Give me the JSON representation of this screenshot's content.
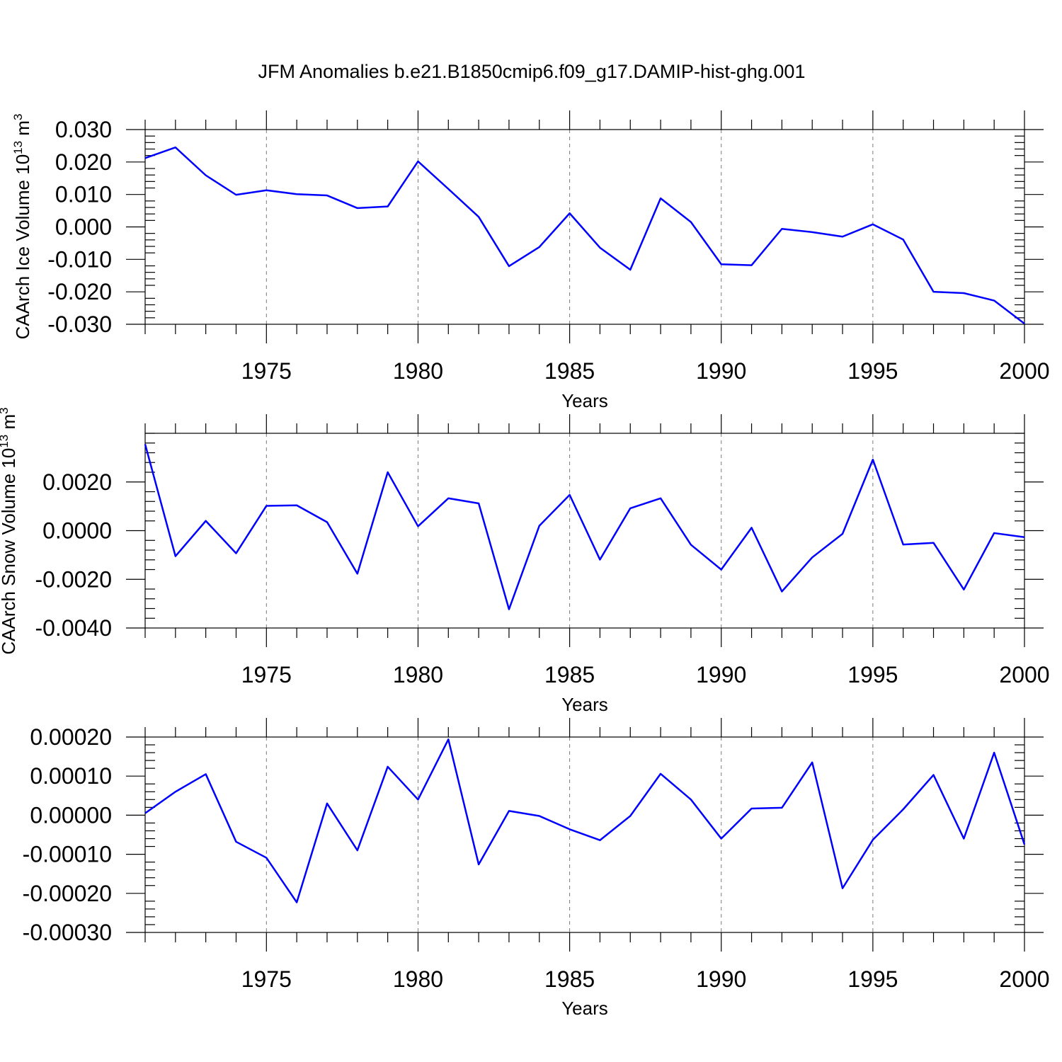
{
  "figure": {
    "title": "JFM Anomalies b.e21.B1850cmip6.f09_g17.DAMIP-hist-ghg.001"
  },
  "colors": {
    "series": "#0000ff",
    "grid": "#7a7a7a",
    "axis": "#000000"
  },
  "chart_data": [
    {
      "type": "line",
      "title": "",
      "xlabel": "Years",
      "ylabel": "CAArch Ice Volume 10",
      "ylabel_exponent": "13",
      "ylabel_unit": " m",
      "ylabel_unit_exponent": "3",
      "xlim": [
        1971,
        2000
      ],
      "ylim": [
        -0.03,
        0.03
      ],
      "x_ticks": [
        1975,
        1980,
        1985,
        1990,
        1995,
        2000
      ],
      "y_ticks": [
        -0.03,
        -0.02,
        -0.01,
        0.0,
        0.01,
        0.02,
        0.03
      ],
      "y_tick_labels": [
        "-0.030",
        "-0.020",
        "-0.010",
        "0.000",
        "0.010",
        "0.020",
        "0.030"
      ],
      "grid": "vertical dashed lines at major x ticks",
      "series": [
        {
          "x": [
            1971,
            1972,
            1973,
            1974,
            1975,
            1976,
            1977,
            1978,
            1979,
            1980,
            1981,
            1982,
            1983,
            1984,
            1985,
            1986,
            1987,
            1988,
            1989,
            1990,
            1991,
            1992,
            1993,
            1994,
            1995,
            1996,
            1997,
            1998,
            1999,
            2000
          ],
          "values": [
            0.0212,
            0.0245,
            0.0159,
            0.0099,
            0.0113,
            0.0101,
            0.0097,
            0.0058,
            0.0063,
            0.0202,
            0.0117,
            0.0031,
            -0.0121,
            -0.0062,
            0.0042,
            -0.0064,
            -0.0132,
            0.0088,
            0.0015,
            -0.0115,
            -0.0118,
            -0.0006,
            -0.0016,
            -0.003,
            0.0008,
            -0.0039,
            -0.02,
            -0.0204,
            -0.0227,
            -0.0298
          ]
        }
      ]
    },
    {
      "type": "line",
      "title": "",
      "xlabel": "Years",
      "ylabel": "CAArch Snow Volume 10",
      "ylabel_exponent": "13",
      "ylabel_unit": " m",
      "ylabel_unit_exponent": "3",
      "xlim": [
        1971,
        2000
      ],
      "ylim": [
        -0.004,
        0.004
      ],
      "x_ticks": [
        1975,
        1980,
        1985,
        1990,
        1995,
        2000
      ],
      "y_ticks": [
        -0.004,
        -0.002,
        0.0,
        0.002
      ],
      "y_tick_labels": [
        "-0.0040",
        "-0.0020",
        "0.0000",
        "0.0020"
      ],
      "grid": "vertical dashed lines at major x ticks",
      "series": [
        {
          "x": [
            1971,
            1972,
            1973,
            1974,
            1975,
            1976,
            1977,
            1978,
            1979,
            1980,
            1981,
            1982,
            1983,
            1984,
            1985,
            1986,
            1987,
            1988,
            1989,
            1990,
            1991,
            1992,
            1993,
            1994,
            1995,
            1996,
            1997,
            1998,
            1999,
            2000
          ],
          "values": [
            0.00355,
            -0.00105,
            0.0004,
            -0.00093,
            0.00102,
            0.00104,
            0.00035,
            -0.00177,
            0.0024,
            0.00018,
            0.00133,
            0.00112,
            -0.00323,
            0.0002,
            0.00147,
            -0.00119,
            0.00092,
            0.00133,
            -0.00058,
            -0.0016,
            0.00012,
            -0.0025,
            -0.0011,
            -0.00013,
            0.00292,
            -0.00057,
            -0.0005,
            -0.00242,
            -0.0001,
            -0.00027
          ]
        }
      ]
    },
    {
      "type": "line",
      "title": "",
      "xlabel": "Years",
      "ylabel": "",
      "ylim": [
        -0.0003,
        0.0002
      ],
      "xlim": [
        1971,
        2000
      ],
      "x_ticks": [
        1975,
        1980,
        1985,
        1990,
        1995,
        2000
      ],
      "y_ticks": [
        -0.0003,
        -0.0002,
        -0.0001,
        0.0,
        0.0001,
        0.0002
      ],
      "y_tick_labels": [
        "-0.00030",
        "-0.00020",
        "-0.00010",
        "0.00000",
        "0.00010",
        "0.00020"
      ],
      "grid": "vertical dashed lines at major x ticks",
      "series": [
        {
          "x": [
            1971,
            1972,
            1973,
            1974,
            1975,
            1976,
            1977,
            1978,
            1979,
            1980,
            1981,
            1982,
            1983,
            1984,
            1985,
            1986,
            1987,
            1988,
            1989,
            1990,
            1991,
            1992,
            1993,
            1994,
            1995,
            1996,
            1997,
            1998,
            1999,
            2000
          ],
          "values": [
            5e-06,
            6e-05,
            0.000105,
            -6.8e-05,
            -0.000109,
            -0.000223,
            3e-05,
            -9e-05,
            0.000124,
            4e-05,
            0.000194,
            -0.000126,
            1.1e-05,
            -2e-06,
            -3.6e-05,
            -6.4e-05,
            -2e-06,
            0.000106,
            4e-05,
            -6e-05,
            1.7e-05,
            1.9e-05,
            0.000135,
            -0.000187,
            -6.3e-05,
            1.5e-05,
            0.000103,
            -6e-05,
            0.00016,
            -7.5e-05
          ]
        }
      ]
    }
  ]
}
